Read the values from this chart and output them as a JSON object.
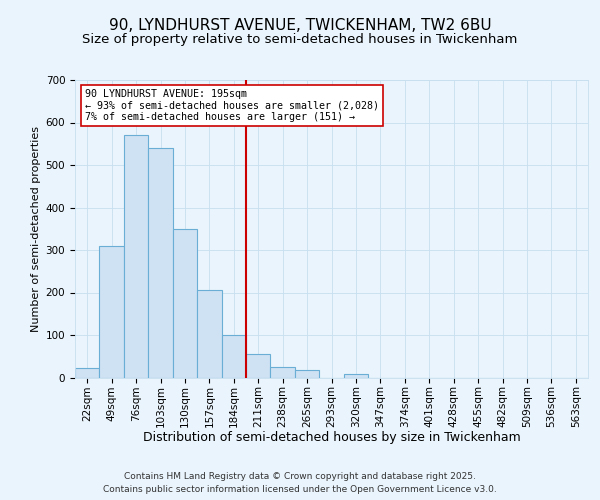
{
  "title1": "90, LYNDHURST AVENUE, TWICKENHAM, TW2 6BU",
  "title2": "Size of property relative to semi-detached houses in Twickenham",
  "xlabel": "Distribution of semi-detached houses by size in Twickenham",
  "ylabel": "Number of semi-detached properties",
  "categories": [
    "22sqm",
    "49sqm",
    "76sqm",
    "103sqm",
    "130sqm",
    "157sqm",
    "184sqm",
    "211sqm",
    "238sqm",
    "265sqm",
    "293sqm",
    "320sqm",
    "347sqm",
    "374sqm",
    "401sqm",
    "428sqm",
    "455sqm",
    "482sqm",
    "509sqm",
    "536sqm",
    "563sqm"
  ],
  "values": [
    22,
    310,
    570,
    540,
    350,
    205,
    100,
    55,
    25,
    18,
    0,
    8,
    0,
    0,
    0,
    0,
    0,
    0,
    0,
    0,
    0
  ],
  "bar_color": "#cfe2f3",
  "bar_edge_color": "#6aaed6",
  "vline_color": "#cc0000",
  "annotation_text": "90 LYNDHURST AVENUE: 195sqm\n← 93% of semi-detached houses are smaller (2,028)\n7% of semi-detached houses are larger (151) →",
  "annotation_box_color": "#ffffff",
  "annotation_box_edge": "#cc0000",
  "ylim": [
    0,
    700
  ],
  "yticks": [
    0,
    100,
    200,
    300,
    400,
    500,
    600,
    700
  ],
  "fig_bg_color": "#eaf4fc",
  "plot_bg": "#eaf4fc",
  "grid_color": "#c8dff0",
  "footer1": "Contains HM Land Registry data © Crown copyright and database right 2025.",
  "footer2": "Contains public sector information licensed under the Open Government Licence v3.0.",
  "title1_fontsize": 11,
  "title2_fontsize": 9.5,
  "xlabel_fontsize": 9,
  "ylabel_fontsize": 8,
  "tick_fontsize": 7.5,
  "footer_fontsize": 6.5
}
